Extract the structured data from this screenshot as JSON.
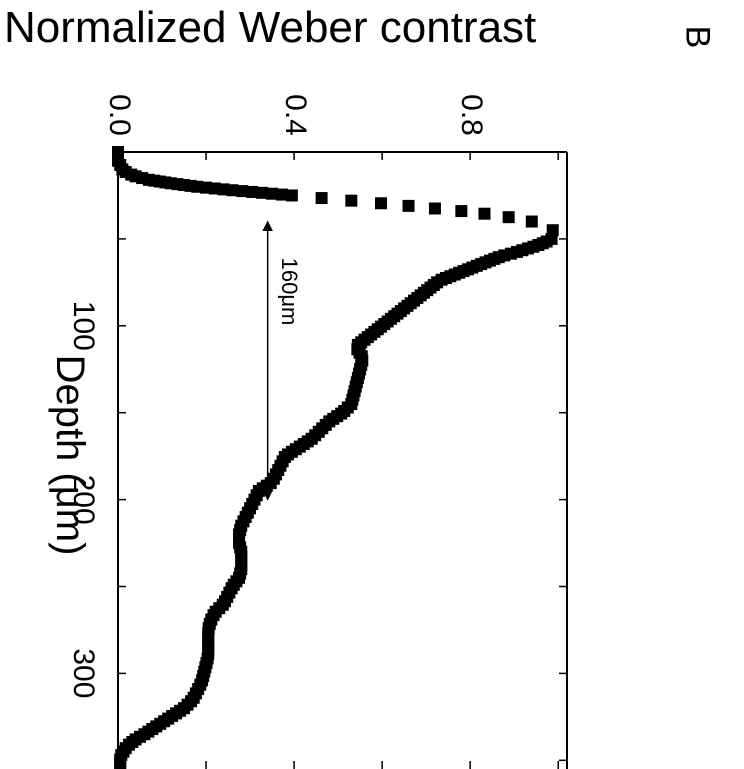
{
  "panel_label": "B",
  "chart_data": {
    "type": "line",
    "title": "",
    "xlabel": "Depth (μm)",
    "ylabel": "Normalized Weber contrast",
    "xlim": [
      0,
      355
    ],
    "ylim": [
      0,
      1.02
    ],
    "xticks": [
      100,
      200,
      300
    ],
    "yticks": [
      0.0,
      0.4,
      0.8
    ],
    "ytick_labels": [
      "0.0",
      "0.4",
      "0.8"
    ],
    "series": [
      {
        "name": "",
        "x": [
          0,
          5,
          10,
          12,
          14,
          16,
          18,
          20,
          22,
          24,
          26,
          28,
          30,
          32,
          34,
          36,
          38,
          40,
          42,
          44,
          46,
          48,
          50,
          52,
          54,
          56,
          58,
          60,
          62,
          64,
          66,
          68,
          70,
          72,
          74,
          76,
          78,
          80,
          82,
          84,
          86,
          88,
          90,
          92,
          94,
          96,
          98,
          100,
          102,
          104,
          106,
          108,
          110,
          112,
          114,
          116,
          118,
          120,
          125,
          130,
          135,
          140,
          145,
          150,
          155,
          160,
          165,
          170,
          175,
          180,
          185,
          190,
          195,
          200,
          205,
          210,
          215,
          220,
          225,
          230,
          235,
          240,
          245,
          250,
          255,
          260,
          265,
          270,
          275,
          280,
          285,
          290,
          295,
          300,
          305,
          310,
          315,
          320,
          325,
          330,
          335,
          338,
          340,
          342,
          344,
          346,
          348,
          350,
          352,
          355
        ],
        "y": [
          0.0,
          0.0,
          0.01,
          0.02,
          0.04,
          0.07,
          0.12,
          0.18,
          0.26,
          0.35,
          0.44,
          0.53,
          0.62,
          0.7,
          0.78,
          0.85,
          0.9,
          0.94,
          0.97,
          0.985,
          0.99,
          0.99,
          0.985,
          0.97,
          0.95,
          0.925,
          0.9,
          0.87,
          0.85,
          0.83,
          0.81,
          0.79,
          0.77,
          0.75,
          0.73,
          0.72,
          0.71,
          0.7,
          0.69,
          0.68,
          0.67,
          0.66,
          0.65,
          0.64,
          0.63,
          0.62,
          0.61,
          0.6,
          0.59,
          0.58,
          0.57,
          0.56,
          0.55,
          0.54,
          0.545,
          0.55,
          0.555,
          0.555,
          0.55,
          0.545,
          0.54,
          0.535,
          0.53,
          0.51,
          0.48,
          0.46,
          0.44,
          0.41,
          0.38,
          0.37,
          0.36,
          0.35,
          0.32,
          0.31,
          0.3,
          0.29,
          0.28,
          0.275,
          0.275,
          0.28,
          0.28,
          0.28,
          0.275,
          0.26,
          0.25,
          0.24,
          0.22,
          0.21,
          0.205,
          0.205,
          0.205,
          0.205,
          0.2,
          0.195,
          0.19,
          0.18,
          0.17,
          0.15,
          0.12,
          0.09,
          0.06,
          0.04,
          0.03,
          0.02,
          0.015,
          0.01,
          0.005,
          0.005,
          0.005,
          0.005
        ]
      }
    ],
    "annotation": {
      "type": "double-arrow",
      "text": "160μm",
      "x_start": 40,
      "x_end": 200,
      "y": 0.34
    },
    "grid": false,
    "legend": "none"
  }
}
